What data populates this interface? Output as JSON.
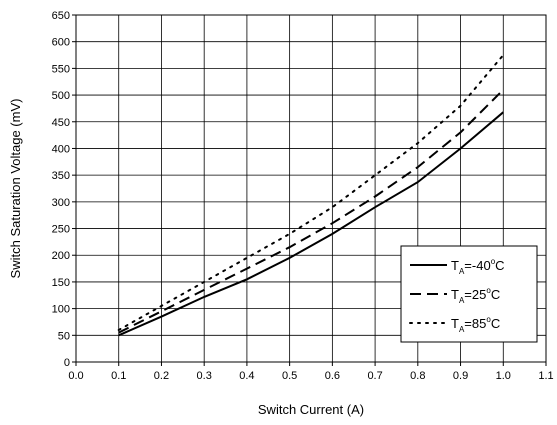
{
  "chart_data": {
    "type": "line",
    "xlabel": "Switch Current (A)",
    "ylabel": "Switch Saturation Voltage (mV)",
    "xlim": [
      0.0,
      1.1
    ],
    "ylim": [
      0,
      650
    ],
    "x_ticks": [
      "0.0",
      "0.1",
      "0.2",
      "0.3",
      "0.4",
      "0.5",
      "0.6",
      "0.7",
      "0.8",
      "0.9",
      "1.0",
      "1.1"
    ],
    "y_ticks": [
      "0",
      "50",
      "100",
      "150",
      "200",
      "250",
      "300",
      "350",
      "400",
      "450",
      "500",
      "550",
      "600",
      "650"
    ],
    "grid": true,
    "legend_position": "bottom-right",
    "series": [
      {
        "name": "TA=-40°C",
        "legend": {
          "prefix": "T",
          "sub": "A",
          "value": "=-40",
          "sup": "o",
          "unit": "C"
        },
        "line_style": "solid",
        "x": [
          0.1,
          0.2,
          0.3,
          0.4,
          0.5,
          0.6,
          0.7,
          0.8,
          0.9,
          1.0
        ],
        "y": [
          50,
          85,
          122,
          155,
          195,
          240,
          290,
          337,
          400,
          468
        ]
      },
      {
        "name": "TA=25°C",
        "legend": {
          "prefix": "T",
          "sub": "A",
          "value": "=25",
          "sup": "o",
          "unit": "C"
        },
        "line_style": "dashed",
        "x": [
          0.1,
          0.2,
          0.3,
          0.4,
          0.5,
          0.6,
          0.7,
          0.8,
          0.9,
          1.0
        ],
        "y": [
          55,
          95,
          135,
          175,
          215,
          260,
          310,
          365,
          430,
          510
        ]
      },
      {
        "name": "TA=85°C",
        "legend": {
          "prefix": "T",
          "sub": "A",
          "value": "=85",
          "sup": "o",
          "unit": "C"
        },
        "line_style": "dotted",
        "x": [
          0.1,
          0.2,
          0.3,
          0.4,
          0.5,
          0.6,
          0.7,
          0.8,
          0.9,
          1.0
        ],
        "y": [
          60,
          105,
          150,
          195,
          240,
          290,
          350,
          410,
          480,
          575
        ]
      }
    ]
  }
}
